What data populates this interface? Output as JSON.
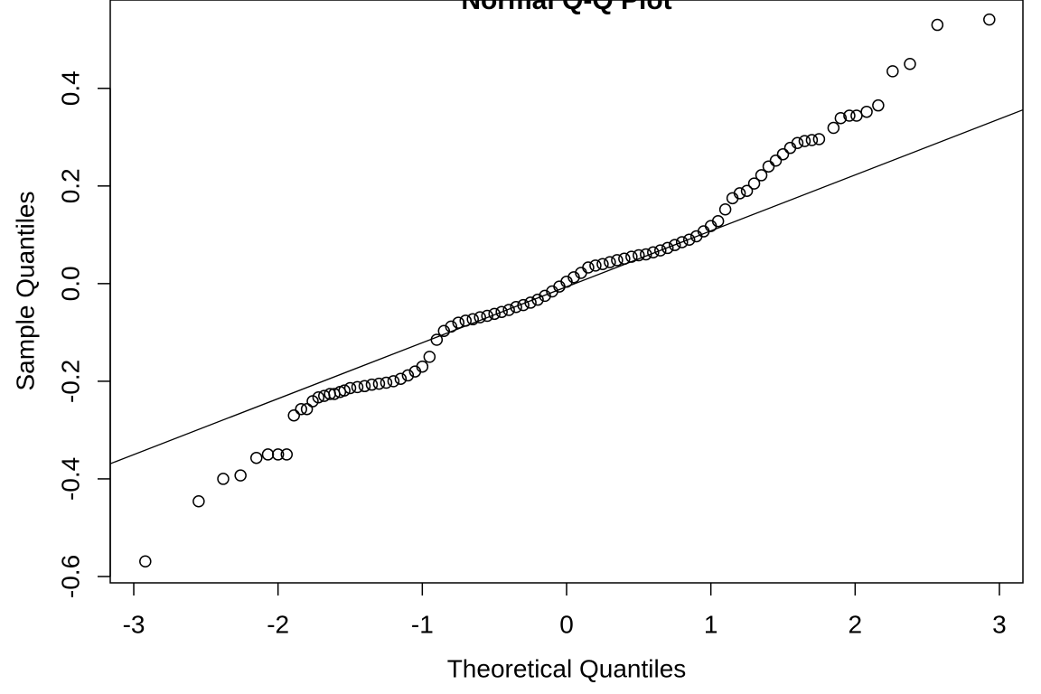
{
  "chart_data": {
    "type": "scatter",
    "title": "Normal Q-Q Plot",
    "xlabel": "Theoretical Quantiles",
    "ylabel": "Sample Quantiles",
    "x": [
      -2.92,
      -2.55,
      -2.38,
      -2.26,
      -2.15,
      -2.07,
      -2.0,
      -1.94,
      -1.89,
      -1.84,
      -1.8,
      -1.76,
      -1.72,
      -1.68,
      -1.64,
      -1.61,
      -1.57,
      -1.54,
      -1.5,
      -1.45,
      -1.4,
      -1.35,
      -1.3,
      -1.25,
      -1.2,
      -1.15,
      -1.1,
      -1.05,
      -1.0,
      -0.95,
      -0.9,
      -0.85,
      -0.8,
      -0.75,
      -0.7,
      -0.65,
      -0.6,
      -0.55,
      -0.5,
      -0.45,
      -0.4,
      -0.35,
      -0.3,
      -0.25,
      -0.2,
      -0.15,
      -0.1,
      -0.05,
      0.0,
      0.05,
      0.1,
      0.15,
      0.2,
      0.25,
      0.3,
      0.35,
      0.4,
      0.45,
      0.5,
      0.55,
      0.6,
      0.65,
      0.7,
      0.75,
      0.8,
      0.85,
      0.9,
      0.95,
      1.0,
      1.05,
      1.1,
      1.15,
      1.2,
      1.25,
      1.3,
      1.35,
      1.4,
      1.45,
      1.5,
      1.55,
      1.6,
      1.65,
      1.7,
      1.75,
      1.85,
      1.9,
      1.96,
      2.01,
      2.08,
      2.16,
      2.26,
      2.38,
      2.57,
      2.93
    ],
    "values": [
      -0.569,
      -0.446,
      -0.4,
      -0.393,
      -0.357,
      -0.35,
      -0.35,
      -0.35,
      -0.27,
      -0.257,
      -0.257,
      -0.241,
      -0.233,
      -0.23,
      -0.226,
      -0.226,
      -0.222,
      -0.219,
      -0.214,
      -0.212,
      -0.21,
      -0.207,
      -0.205,
      -0.203,
      -0.2,
      -0.195,
      -0.188,
      -0.18,
      -0.17,
      -0.15,
      -0.115,
      -0.097,
      -0.088,
      -0.08,
      -0.076,
      -0.073,
      -0.069,
      -0.066,
      -0.062,
      -0.058,
      -0.054,
      -0.048,
      -0.044,
      -0.039,
      -0.033,
      -0.025,
      -0.016,
      -0.006,
      0.004,
      0.013,
      0.022,
      0.033,
      0.037,
      0.04,
      0.044,
      0.048,
      0.051,
      0.055,
      0.058,
      0.06,
      0.064,
      0.068,
      0.073,
      0.079,
      0.085,
      0.09,
      0.097,
      0.107,
      0.118,
      0.128,
      0.152,
      0.175,
      0.185,
      0.19,
      0.205,
      0.222,
      0.24,
      0.252,
      0.265,
      0.278,
      0.288,
      0.292,
      0.294,
      0.296,
      0.319,
      0.339,
      0.344,
      0.344,
      0.352,
      0.365,
      0.435,
      0.45,
      0.53,
      0.541
    ],
    "reference_line": {
      "intercept": -0.0065,
      "slope": 0.1146
    },
    "color": "#000000",
    "xlim": [
      -3.163,
      3.163
    ],
    "ylim": [
      -0.613,
      0.581
    ],
    "xticks": [
      -3,
      -2,
      -1,
      0,
      1,
      2,
      3
    ],
    "yticks": [
      -0.6,
      -0.4,
      -0.2,
      {
        "value": 0,
        "label": "0.0"
      },
      0.2,
      0.4
    ]
  }
}
